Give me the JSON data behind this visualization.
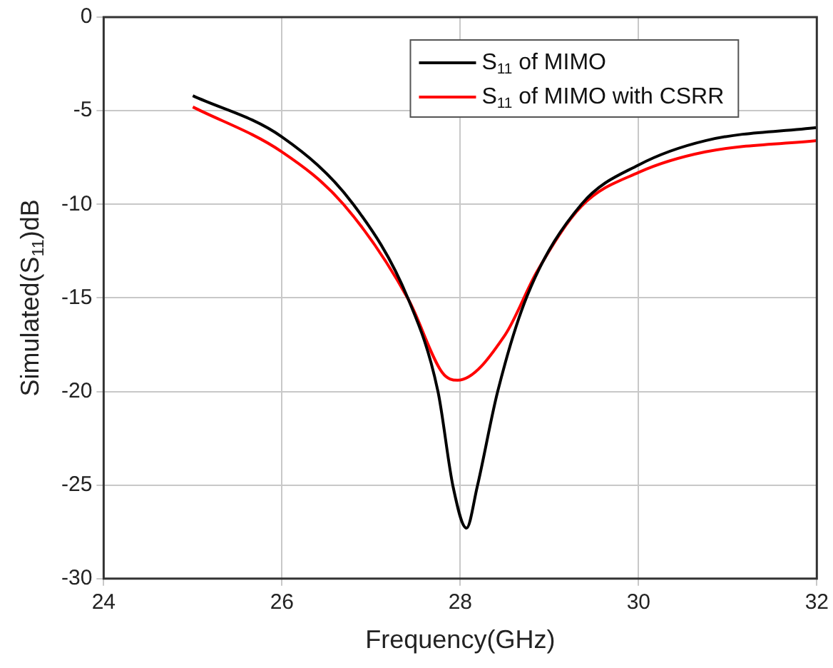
{
  "chart_data": {
    "type": "line",
    "xlabel": "Frequency(GHz)",
    "ylabel": "Simulated(S$_{11}$)dB",
    "xlim": [
      24,
      32
    ],
    "xticks": [
      24,
      26,
      28,
      30,
      32
    ],
    "ylim": [
      -30,
      0
    ],
    "yticks": [
      -30,
      -25,
      -20,
      -15,
      -10,
      -5,
      0
    ],
    "grid": true,
    "legend": "top right",
    "marker": "none",
    "line_style": "solid",
    "series": [
      {
        "name": "S$_{11}$ of MIMO",
        "color": "#000000",
        "x": [
          25,
          26,
          26.8,
          27.42,
          27.75,
          27.92,
          28.07,
          28.19,
          28.42,
          28.75,
          29.36,
          30,
          30.75,
          32
        ],
        "values": [
          -4.2,
          -6.4,
          -10,
          -15.1,
          -20,
          -25.1,
          -27.3,
          -25.1,
          -20,
          -14.9,
          -10,
          -7.9,
          -6.6,
          -5.9
        ]
      },
      {
        "name": "S$_{11}$ of MIMO with CSRR",
        "color": "#ff0000",
        "x": [
          25,
          26,
          26.69,
          27.42,
          27.8,
          27.97,
          28.5,
          28.86,
          29.36,
          30,
          30.75,
          32
        ],
        "values": [
          -4.8,
          -7.2,
          -10,
          -15.1,
          -19,
          -19.4,
          -17,
          -13.6,
          -10.1,
          -8.3,
          -7.2,
          -6.6
        ]
      }
    ]
  }
}
